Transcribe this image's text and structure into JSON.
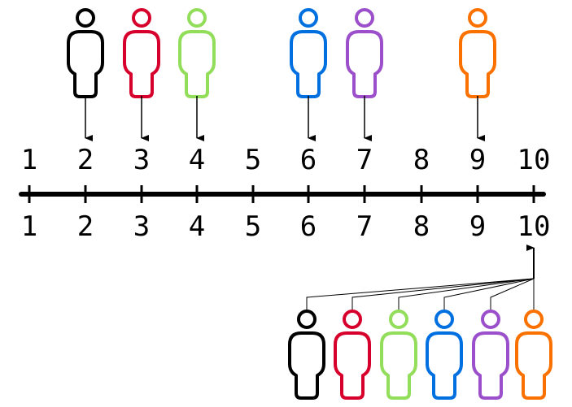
{
  "number_line": {
    "top_labels": [
      "1",
      "2",
      "3",
      "4",
      "5",
      "6",
      "7",
      "8",
      "9",
      "10"
    ],
    "bottom_labels": [
      "1",
      "2",
      "3",
      "4",
      "5",
      "6",
      "7",
      "8",
      "9",
      "10"
    ]
  },
  "colors": {
    "black": "#000000",
    "red": "#d7002c",
    "green": "#92dd5a",
    "blue": "#0070e0",
    "purple": "#9b4fcb",
    "orange": "#fb7100"
  },
  "top_people": [
    {
      "color": "#000000",
      "points_to": "2"
    },
    {
      "color": "#d7002c",
      "points_to": "3"
    },
    {
      "color": "#92dd5a",
      "points_to": "4"
    },
    {
      "color": "#0070e0",
      "points_to": "6"
    },
    {
      "color": "#9b4fcb",
      "points_to": "7"
    },
    {
      "color": "#fb7100",
      "points_to": "9"
    }
  ],
  "bottom_people": [
    {
      "color": "#000000",
      "points_to": "10"
    },
    {
      "color": "#d7002c",
      "points_to": "10"
    },
    {
      "color": "#92dd5a",
      "points_to": "10"
    },
    {
      "color": "#0070e0",
      "points_to": "10"
    },
    {
      "color": "#9b4fcb",
      "points_to": "10"
    },
    {
      "color": "#fb7100",
      "points_to": "10"
    }
  ],
  "icon": "person-icon"
}
